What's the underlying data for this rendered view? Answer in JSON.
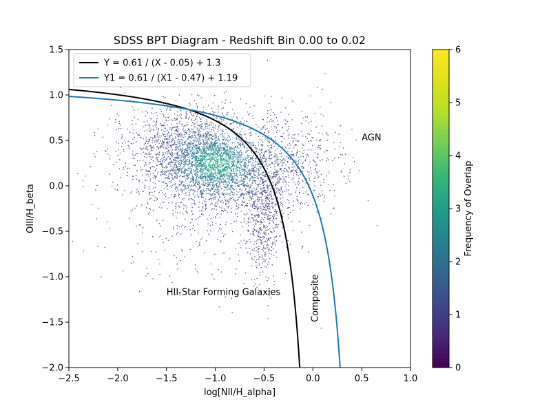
{
  "chart_data": {
    "type": "scatter",
    "title": "SDSS BPT Diagram - Redshift Bin 0.00 to 0.02",
    "xlabel": "log[NII/H_alpha]",
    "ylabel": "OIII/H_beta",
    "xlim": [
      -2.5,
      1.0
    ],
    "ylim": [
      -2.0,
      1.5
    ],
    "xticks": [
      "−2.5",
      "−2.0",
      "−1.5",
      "−1.0",
      "−0.5",
      "0.0",
      "0.5",
      "1.0"
    ],
    "xtick_values": [
      -2.5,
      -2.0,
      -1.5,
      -1.0,
      -0.5,
      0.0,
      0.5,
      1.0
    ],
    "yticks": [
      "1.5",
      "1.0",
      "0.5",
      "0.0",
      "−0.5",
      "−1.0",
      "−1.5",
      "−2.0"
    ],
    "ytick_values": [
      1.5,
      1.0,
      0.5,
      0.0,
      -0.5,
      -1.0,
      -1.5,
      -2.0
    ],
    "legend_position": "top-left",
    "grid": false,
    "series": [
      {
        "name": "Y = 0.61 / (X - 0.05) + 1.3",
        "color": "#000000",
        "a": 0.61,
        "x0": 0.05,
        "c": 1.3
      },
      {
        "name": "Y1 = 0.61 / (X1 - 0.47) + 1.19",
        "color": "#1f77b4",
        "a": 0.61,
        "x0": 0.47,
        "c": 1.19
      }
    ],
    "annotations": [
      {
        "text": "AGN",
        "x": 0.5,
        "y": 0.5,
        "rotation": 0
      },
      {
        "text": "HII-Star Forming Galaxies",
        "x": -1.5,
        "y": -1.2,
        "rotation": 0
      },
      {
        "text": "Composite",
        "x": 0.05,
        "y": -1.5,
        "rotation": -90
      }
    ],
    "density": {
      "description": "2D histogram of galaxy line ratios",
      "clusters": [
        {
          "x": -1.05,
          "y": 0.25,
          "sx": 0.35,
          "sy": 0.25,
          "n": 2600,
          "rot": -0.7
        },
        {
          "x": -0.5,
          "y": -0.35,
          "sx": 0.09,
          "sy": 0.35,
          "n": 500,
          "rot": 0
        },
        {
          "x": -1.4,
          "y": 0.4,
          "sx": 0.35,
          "sy": 0.25,
          "n": 700,
          "rot": 0
        },
        {
          "x": -0.3,
          "y": 0.25,
          "sx": 0.3,
          "sy": 0.3,
          "n": 700,
          "rot": 0
        },
        {
          "x": -1.2,
          "y": -0.2,
          "sx": 0.5,
          "sy": 0.45,
          "n": 500,
          "rot": 0
        }
      ]
    },
    "colorbar": {
      "label": "Frequency of Overlap",
      "min": 0,
      "max": 6,
      "ticks": [
        "0",
        "1",
        "2",
        "3",
        "4",
        "5",
        "6"
      ],
      "colormap": "viridis"
    }
  }
}
